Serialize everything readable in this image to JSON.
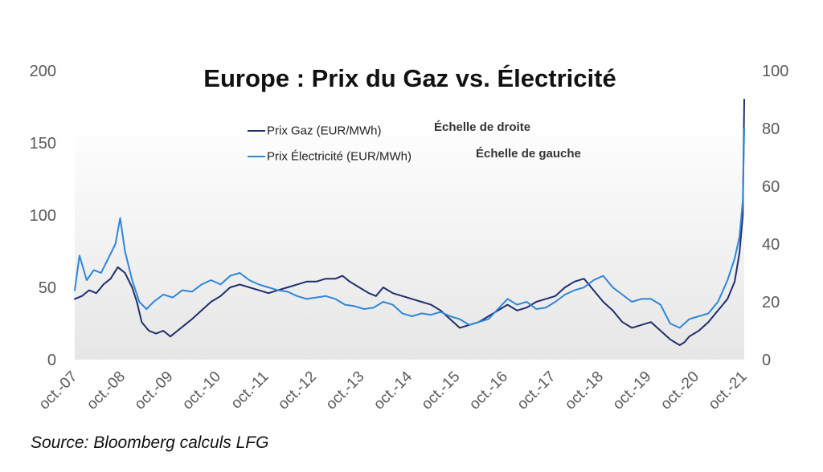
{
  "chart_data": {
    "type": "line",
    "title": "Europe : Prix du Gaz vs. Électricité",
    "x_tick_labels": [
      "oct.-07",
      "oct.-08",
      "oct.-09",
      "oct.-10",
      "oct.-11",
      "oct.-12",
      "oct.-13",
      "oct.-14",
      "oct.-15",
      "oct.-16",
      "oct.-17",
      "oct.-18",
      "oct.-19",
      "oct.-20",
      "oct.-21"
    ],
    "x_range": [
      2007.75,
      2021.75
    ],
    "y_left": {
      "range": [
        0,
        200
      ],
      "ticks": [
        "0",
        "50",
        "100",
        "150",
        "200"
      ]
    },
    "y_right": {
      "range": [
        0,
        100
      ],
      "ticks": [
        "0",
        "20",
        "40",
        "60",
        "80",
        "100"
      ]
    },
    "grid": false,
    "legend_position": "top-center",
    "series": [
      {
        "name": "Prix Gaz (EUR/MWh)",
        "axis_note": "Échelle de droite",
        "axis": "right",
        "color": "#1f2e6e",
        "x": [
          2007.75,
          2007.9,
          2008.05,
          2008.2,
          2008.35,
          2008.5,
          2008.65,
          2008.8,
          2008.95,
          2009.05,
          2009.15,
          2009.3,
          2009.45,
          2009.6,
          2009.75,
          2009.9,
          2010.05,
          2010.2,
          2010.4,
          2010.6,
          2010.8,
          2011.0,
          2011.2,
          2011.4,
          2011.6,
          2011.8,
          2012.0,
          2012.2,
          2012.4,
          2012.6,
          2012.8,
          2013.0,
          2013.2,
          2013.35,
          2013.5,
          2013.7,
          2013.9,
          2014.05,
          2014.2,
          2014.4,
          2014.6,
          2014.8,
          2015.0,
          2015.2,
          2015.4,
          2015.6,
          2015.8,
          2016.0,
          2016.2,
          2016.4,
          2016.6,
          2016.8,
          2017.0,
          2017.2,
          2017.4,
          2017.6,
          2017.8,
          2018.0,
          2018.2,
          2018.4,
          2018.6,
          2018.8,
          2019.0,
          2019.2,
          2019.4,
          2019.6,
          2019.8,
          2020.0,
          2020.2,
          2020.4,
          2020.5,
          2020.6,
          2020.8,
          2021.0,
          2021.2,
          2021.4,
          2021.55,
          2021.65,
          2021.72,
          2021.75
        ],
        "y": [
          21,
          22,
          24,
          23,
          26,
          28,
          32,
          30,
          25,
          20,
          13,
          10,
          9,
          10,
          8,
          10,
          12,
          14,
          17,
          20,
          22,
          25,
          26,
          25,
          24,
          23,
          24,
          25,
          26,
          27,
          27,
          28,
          28,
          29,
          27,
          25,
          23,
          22,
          25,
          23,
          22,
          21,
          20,
          19,
          17,
          14,
          11,
          12,
          13,
          15,
          17,
          19,
          17,
          18,
          20,
          21,
          22,
          25,
          27,
          28,
          24,
          20,
          17,
          13,
          11,
          12,
          13,
          10,
          7,
          5,
          6,
          8,
          10,
          13,
          17,
          21,
          27,
          37,
          50,
          90
        ]
      },
      {
        "name": "Prix Électricité (EUR/MWh)",
        "axis_note": "Échelle de gauche",
        "axis": "left",
        "color": "#2f86d6",
        "x": [
          2007.75,
          2007.85,
          2008.0,
          2008.15,
          2008.3,
          2008.45,
          2008.6,
          2008.7,
          2008.8,
          2008.95,
          2009.1,
          2009.25,
          2009.4,
          2009.6,
          2009.8,
          2010.0,
          2010.2,
          2010.4,
          2010.6,
          2010.8,
          2011.0,
          2011.2,
          2011.4,
          2011.6,
          2011.8,
          2012.0,
          2012.2,
          2012.4,
          2012.6,
          2012.8,
          2013.0,
          2013.2,
          2013.4,
          2013.6,
          2013.8,
          2014.0,
          2014.2,
          2014.4,
          2014.6,
          2014.8,
          2015.0,
          2015.2,
          2015.4,
          2015.6,
          2015.8,
          2016.0,
          2016.2,
          2016.4,
          2016.6,
          2016.8,
          2017.0,
          2017.2,
          2017.4,
          2017.6,
          2017.8,
          2018.0,
          2018.2,
          2018.4,
          2018.6,
          2018.8,
          2019.0,
          2019.2,
          2019.4,
          2019.6,
          2019.8,
          2020.0,
          2020.2,
          2020.4,
          2020.6,
          2020.8,
          2021.0,
          2021.2,
          2021.4,
          2021.55,
          2021.65,
          2021.72,
          2021.75
        ],
        "y": [
          48,
          72,
          55,
          62,
          60,
          70,
          80,
          98,
          75,
          55,
          40,
          35,
          40,
          45,
          43,
          48,
          47,
          52,
          55,
          52,
          58,
          60,
          55,
          52,
          50,
          48,
          47,
          44,
          42,
          43,
          44,
          42,
          38,
          37,
          35,
          36,
          40,
          38,
          32,
          30,
          32,
          31,
          33,
          30,
          28,
          24,
          26,
          28,
          35,
          42,
          38,
          40,
          35,
          36,
          40,
          45,
          48,
          50,
          55,
          58,
          50,
          45,
          40,
          42,
          42,
          38,
          25,
          22,
          28,
          30,
          32,
          40,
          55,
          70,
          85,
          110,
          160
        ]
      }
    ]
  },
  "title": "Europe : Prix du Gaz vs. Électricité",
  "legend": [
    {
      "label": "Prix Gaz (EUR/MWh)",
      "note": "Échelle de droite",
      "color": "#1f2e6e"
    },
    {
      "label": "Prix Électricité (EUR/MWh)",
      "note": "Échelle de gauche",
      "color": "#2f86d6"
    }
  ],
  "source": "Source: Bloomberg calculs LFG"
}
